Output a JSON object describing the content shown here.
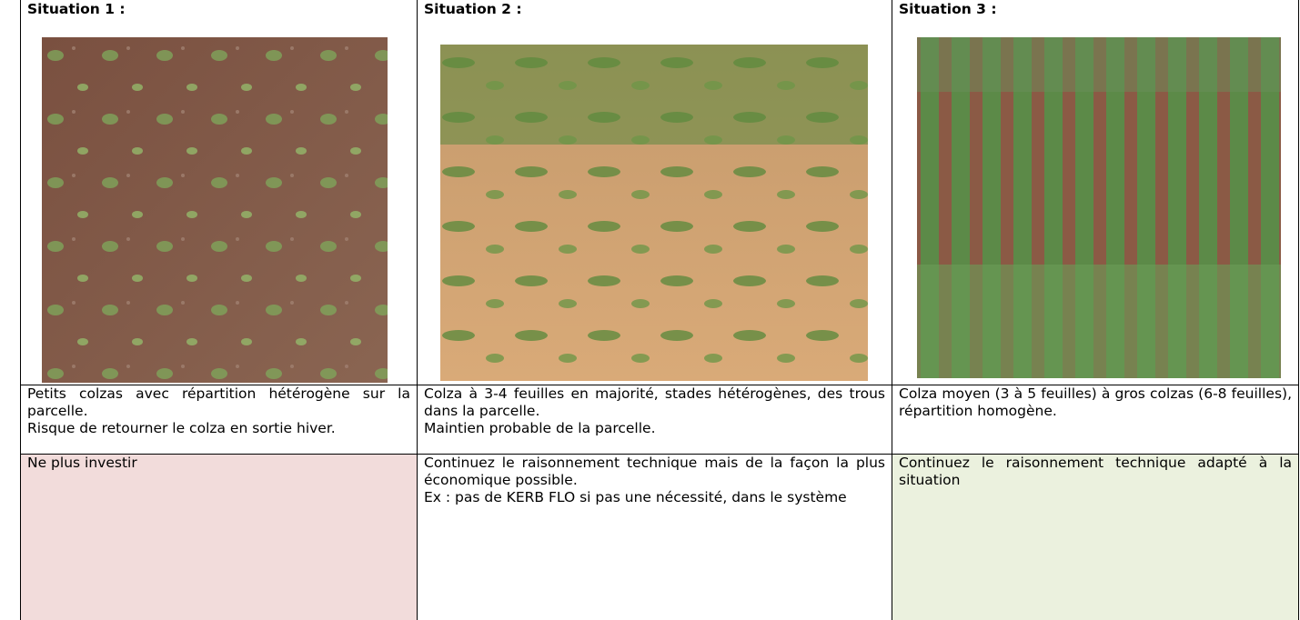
{
  "table": {
    "rows": [
      [
        {
          "title": "Situation 1 :"
        },
        {
          "title": "Situation 2 :"
        },
        {
          "title": "Situation 3 :"
        }
      ],
      [
        {
          "paragraphs": [
            "Petits colzas avec répartition hétérogène sur la parcelle.",
            "Risque de retourner le colza en sortie hiver."
          ]
        },
        {
          "paragraphs": [
            "Colza à 3-4 feuilles en majorité, stades hétérogènes, des trous dans la parcelle.",
            "Maintien probable de la parcelle."
          ]
        },
        {
          "paragraphs": [
            "Colza moyen (3 à 5 feuilles) à gros colzas (6-8 feuilles), répartition homogène."
          ]
        }
      ],
      [
        {
          "paragraphs": [
            "Ne plus investir"
          ]
        },
        {
          "paragraphs": [
            "Continuez le raisonnement technique mais de la façon la plus économique possible.",
            "Ex : pas de KERB FLO si pas une nécessité, dans le système"
          ]
        },
        {
          "paragraphs": [
            "Continuez le raisonnement technique adapté à la situation"
          ]
        }
      ]
    ]
  }
}
